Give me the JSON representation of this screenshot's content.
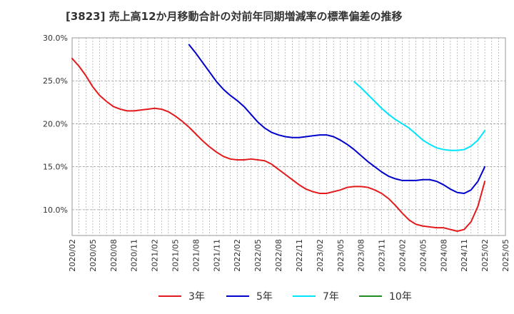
{
  "title": "[3823]  売上高12か月移動合計の対前年同期増減率の標準偏差の推移",
  "chart_data": {
    "type": "line",
    "title": "[3823]  売上高12か月移動合計の対前年同期増減率の標準偏差の推移",
    "xlabel": "",
    "ylabel": "",
    "ylim": [
      0.07,
      0.3
    ],
    "y_ticks": [
      "10.0%",
      "15.0%",
      "20.0%",
      "25.0%",
      "30.0%"
    ],
    "y_tick_values": [
      0.1,
      0.15,
      0.2,
      0.25,
      0.3
    ],
    "x_ticks": [
      "2020/02",
      "2020/05",
      "2020/08",
      "2020/11",
      "2021/02",
      "2021/05",
      "2021/08",
      "2021/11",
      "2022/02",
      "2022/05",
      "2022/08",
      "2022/11",
      "2023/02",
      "2023/05",
      "2023/08",
      "2023/11",
      "2024/02",
      "2024/05",
      "2024/08",
      "2024/11",
      "2025/02",
      "2025/05"
    ],
    "xlim": [
      "2020/02",
      "2025/05"
    ],
    "grid": true,
    "legend_position": "bottom",
    "series": [
      {
        "name": "3年",
        "color": "#e31a1c",
        "points": [
          [
            "2020/02",
            0.276
          ],
          [
            "2020/03",
            0.267
          ],
          [
            "2020/04",
            0.256
          ],
          [
            "2020/05",
            0.243
          ],
          [
            "2020/06",
            0.233
          ],
          [
            "2020/07",
            0.226
          ],
          [
            "2020/08",
            0.22
          ],
          [
            "2020/09",
            0.217
          ],
          [
            "2020/10",
            0.215
          ],
          [
            "2020/11",
            0.215
          ],
          [
            "2020/12",
            0.216
          ],
          [
            "2021/01",
            0.217
          ],
          [
            "2021/02",
            0.218
          ],
          [
            "2021/03",
            0.217
          ],
          [
            "2021/04",
            0.214
          ],
          [
            "2021/05",
            0.209
          ],
          [
            "2021/06",
            0.203
          ],
          [
            "2021/07",
            0.196
          ],
          [
            "2021/08",
            0.188
          ],
          [
            "2021/09",
            0.18
          ],
          [
            "2021/10",
            0.173
          ],
          [
            "2021/11",
            0.167
          ],
          [
            "2021/12",
            0.162
          ],
          [
            "2022/01",
            0.159
          ],
          [
            "2022/02",
            0.158
          ],
          [
            "2022/03",
            0.158
          ],
          [
            "2022/04",
            0.159
          ],
          [
            "2022/05",
            0.158
          ],
          [
            "2022/06",
            0.157
          ],
          [
            "2022/07",
            0.153
          ],
          [
            "2022/08",
            0.147
          ],
          [
            "2022/09",
            0.141
          ],
          [
            "2022/10",
            0.135
          ],
          [
            "2022/11",
            0.129
          ],
          [
            "2022/12",
            0.124
          ],
          [
            "2023/01",
            0.121
          ],
          [
            "2023/02",
            0.119
          ],
          [
            "2023/03",
            0.119
          ],
          [
            "2023/04",
            0.121
          ],
          [
            "2023/05",
            0.123
          ],
          [
            "2023/06",
            0.126
          ],
          [
            "2023/07",
            0.127
          ],
          [
            "2023/08",
            0.127
          ],
          [
            "2023/09",
            0.126
          ],
          [
            "2023/10",
            0.123
          ],
          [
            "2023/11",
            0.119
          ],
          [
            "2023/12",
            0.113
          ],
          [
            "2024/01",
            0.105
          ],
          [
            "2024/02",
            0.096
          ],
          [
            "2024/03",
            0.088
          ],
          [
            "2024/04",
            0.083
          ],
          [
            "2024/05",
            0.081
          ],
          [
            "2024/06",
            0.08
          ],
          [
            "2024/07",
            0.079
          ],
          [
            "2024/08",
            0.079
          ],
          [
            "2024/09",
            0.077
          ],
          [
            "2024/10",
            0.075
          ],
          [
            "2024/11",
            0.077
          ],
          [
            "2024/12",
            0.086
          ],
          [
            "2025/01",
            0.104
          ],
          [
            "2025/02",
            0.133
          ]
        ]
      },
      {
        "name": "5年",
        "color": "#0000cc",
        "points": [
          [
            "2021/07",
            0.292
          ],
          [
            "2021/08",
            0.282
          ],
          [
            "2021/09",
            0.271
          ],
          [
            "2021/10",
            0.26
          ],
          [
            "2021/11",
            0.249
          ],
          [
            "2021/12",
            0.24
          ],
          [
            "2022/01",
            0.233
          ],
          [
            "2022/02",
            0.227
          ],
          [
            "2022/03",
            0.22
          ],
          [
            "2022/04",
            0.211
          ],
          [
            "2022/05",
            0.202
          ],
          [
            "2022/06",
            0.195
          ],
          [
            "2022/07",
            0.19
          ],
          [
            "2022/08",
            0.187
          ],
          [
            "2022/09",
            0.185
          ],
          [
            "2022/10",
            0.184
          ],
          [
            "2022/11",
            0.184
          ],
          [
            "2022/12",
            0.185
          ],
          [
            "2023/01",
            0.186
          ],
          [
            "2023/02",
            0.187
          ],
          [
            "2023/03",
            0.187
          ],
          [
            "2023/04",
            0.185
          ],
          [
            "2023/05",
            0.181
          ],
          [
            "2023/06",
            0.176
          ],
          [
            "2023/07",
            0.17
          ],
          [
            "2023/08",
            0.163
          ],
          [
            "2023/09",
            0.156
          ],
          [
            "2023/10",
            0.15
          ],
          [
            "2023/11",
            0.144
          ],
          [
            "2023/12",
            0.139
          ],
          [
            "2024/01",
            0.136
          ],
          [
            "2024/02",
            0.134
          ],
          [
            "2024/03",
            0.134
          ],
          [
            "2024/04",
            0.134
          ],
          [
            "2024/05",
            0.135
          ],
          [
            "2024/06",
            0.135
          ],
          [
            "2024/07",
            0.133
          ],
          [
            "2024/08",
            0.129
          ],
          [
            "2024/09",
            0.124
          ],
          [
            "2024/10",
            0.12
          ],
          [
            "2024/11",
            0.119
          ],
          [
            "2024/12",
            0.123
          ],
          [
            "2025/01",
            0.133
          ],
          [
            "2025/02",
            0.15
          ]
        ]
      },
      {
        "name": "7年",
        "color": "#00e5ff",
        "points": [
          [
            "2023/07",
            0.249
          ],
          [
            "2023/08",
            0.242
          ],
          [
            "2023/09",
            0.234
          ],
          [
            "2023/10",
            0.226
          ],
          [
            "2023/11",
            0.218
          ],
          [
            "2023/12",
            0.211
          ],
          [
            "2024/01",
            0.205
          ],
          [
            "2024/02",
            0.2
          ],
          [
            "2024/03",
            0.195
          ],
          [
            "2024/04",
            0.188
          ],
          [
            "2024/05",
            0.181
          ],
          [
            "2024/06",
            0.176
          ],
          [
            "2024/07",
            0.172
          ],
          [
            "2024/08",
            0.17
          ],
          [
            "2024/09",
            0.169
          ],
          [
            "2024/10",
            0.169
          ],
          [
            "2024/11",
            0.17
          ],
          [
            "2024/12",
            0.174
          ],
          [
            "2025/01",
            0.181
          ],
          [
            "2025/02",
            0.192
          ]
        ]
      },
      {
        "name": "10年",
        "color": "#228b22",
        "points": []
      }
    ]
  }
}
